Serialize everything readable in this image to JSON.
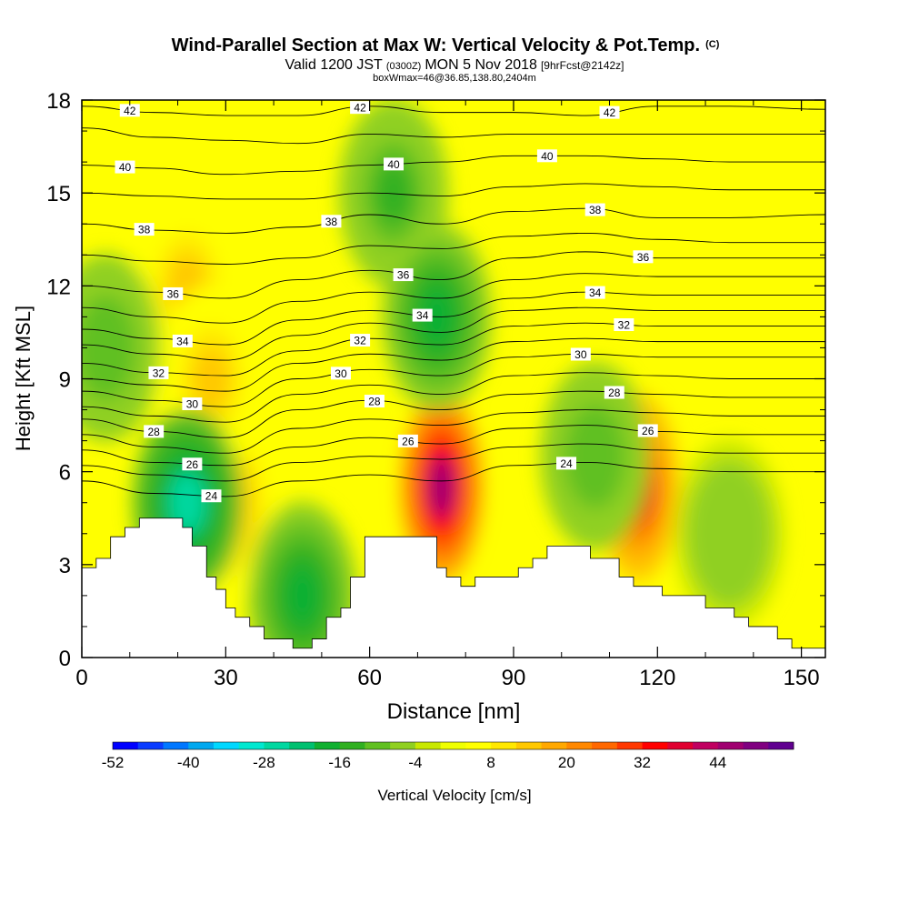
{
  "chart_data": {
    "type": "heatmap",
    "title": "Wind-Parallel Section at Max W: Vertical Velocity & Pot.Temp.",
    "title_mark": "(C)",
    "subtitle_parts": [
      "Valid 1200 JST",
      "(0300Z)",
      "MON 5 Nov 2018",
      "[9hrFcst@2142z]"
    ],
    "subtitle2": "boxWmax=46@36.85,138.80,2404m",
    "xlabel": "Distance [nm]",
    "ylabel": "Height [Kft MSL]",
    "xlim": [
      0,
      155
    ],
    "ylim": [
      0,
      18
    ],
    "x_ticks": [
      "0",
      "30",
      "60",
      "90",
      "120",
      "150"
    ],
    "y_ticks": [
      "0",
      "3",
      "6",
      "9",
      "12",
      "15",
      "18"
    ],
    "terrain": {
      "x": [
        0,
        3,
        6,
        9,
        12,
        15,
        18,
        21,
        23,
        26,
        28,
        30,
        32,
        35,
        38,
        41,
        44,
        46,
        48,
        51,
        54,
        56,
        59,
        62,
        65,
        68,
        71,
        74,
        76,
        79,
        82,
        85,
        88,
        91,
        94,
        97,
        100,
        103,
        106,
        109,
        112,
        115,
        118,
        121,
        124,
        127,
        130,
        133,
        136,
        139,
        142,
        145,
        148,
        150,
        152,
        155
      ],
      "y": [
        2.9,
        3.2,
        3.9,
        4.2,
        4.5,
        4.5,
        4.5,
        4.2,
        3.6,
        2.6,
        2.2,
        1.6,
        1.3,
        1.0,
        0.6,
        0.6,
        0.3,
        0.3,
        0.6,
        1.3,
        1.6,
        2.6,
        3.9,
        3.9,
        3.9,
        3.9,
        3.9,
        2.9,
        2.6,
        2.3,
        2.6,
        2.6,
        2.6,
        2.9,
        3.2,
        3.6,
        3.6,
        3.6,
        3.2,
        3.2,
        2.6,
        2.3,
        2.3,
        2.0,
        2.0,
        2.0,
        1.6,
        1.6,
        1.3,
        1.0,
        1.0,
        0.6,
        0.3,
        0.3,
        0.3,
        0.3
      ]
    },
    "vertical_velocity_cells": {
      "comment_units": "cm/s",
      "cells": [
        {
          "x": 75,
          "y": 5.5,
          "value": 46
        },
        {
          "x": 116,
          "y": 5.5,
          "value": 36
        },
        {
          "x": 29,
          "y": 5.0,
          "value": 18
        },
        {
          "x": 22,
          "y": 12.0,
          "value": 12
        },
        {
          "x": 27,
          "y": 9.0,
          "value": 14
        },
        {
          "x": 65,
          "y": 15.0,
          "value": -14
        },
        {
          "x": 74,
          "y": 11.0,
          "value": -18
        },
        {
          "x": 46,
          "y": 2.0,
          "value": -20
        },
        {
          "x": 22,
          "y": 5.0,
          "value": -26
        },
        {
          "x": 5,
          "y": 10.0,
          "value": -12
        },
        {
          "x": 107,
          "y": 6.5,
          "value": -12
        },
        {
          "x": 135,
          "y": 4.0,
          "value": -8
        }
      ]
    },
    "theta_contours": {
      "label_values": [
        42,
        40,
        38,
        36,
        34,
        32,
        30,
        28,
        26,
        24
      ],
      "levels": [
        {
          "value": 42,
          "ys": [
            17.8,
            17.6,
            17.5,
            17.5,
            17.8,
            17.6,
            17.6,
            17.5,
            17.8,
            17.8,
            17.7
          ]
        },
        {
          "value": 41,
          "ys": [
            17.1,
            16.8,
            16.7,
            16.6,
            16.9,
            16.8,
            16.9,
            16.9,
            16.9,
            16.9,
            16.9
          ]
        },
        {
          "value": 40,
          "ys": [
            15.9,
            15.8,
            15.6,
            15.7,
            15.9,
            16.0,
            16.2,
            16.2,
            16.1,
            16.0,
            16.0
          ]
        },
        {
          "value": 39,
          "ys": [
            15.0,
            14.9,
            14.8,
            14.8,
            15.0,
            14.9,
            15.2,
            15.3,
            15.2,
            15.1,
            15.1
          ]
        },
        {
          "value": 38,
          "ys": [
            14.0,
            13.8,
            13.7,
            13.9,
            14.3,
            14.0,
            14.4,
            14.5,
            14.2,
            14.2,
            14.3
          ]
        },
        {
          "value": 37,
          "ys": [
            13.0,
            12.8,
            12.7,
            12.9,
            13.3,
            13.2,
            13.6,
            13.7,
            13.5,
            13.4,
            13.4
          ]
        },
        {
          "value": 36,
          "ys": [
            12.0,
            11.8,
            11.6,
            12.2,
            12.5,
            12.2,
            12.9,
            13.1,
            12.9,
            12.9,
            12.9
          ]
        },
        {
          "value": 35,
          "ys": [
            11.3,
            11.0,
            10.8,
            11.5,
            11.8,
            11.6,
            12.2,
            12.4,
            12.3,
            12.3,
            12.3
          ]
        },
        {
          "value": 34,
          "ys": [
            10.6,
            10.3,
            10.1,
            10.9,
            11.2,
            11.0,
            11.6,
            11.8,
            11.7,
            11.7,
            11.7
          ]
        },
        {
          "value": 33,
          "ys": [
            10.1,
            9.8,
            9.6,
            10.4,
            10.8,
            10.5,
            11.2,
            11.3,
            11.2,
            11.2,
            11.2
          ]
        },
        {
          "value": 32,
          "ys": [
            9.5,
            9.2,
            9.1,
            9.9,
            10.3,
            10.1,
            10.7,
            10.8,
            10.7,
            10.7,
            10.7
          ]
        },
        {
          "value": 31,
          "ys": [
            9.0,
            8.8,
            8.6,
            9.5,
            9.8,
            9.6,
            10.2,
            10.3,
            10.2,
            10.2,
            10.2
          ]
        },
        {
          "value": 30,
          "ys": [
            8.6,
            8.3,
            8.1,
            9.0,
            9.3,
            9.1,
            9.7,
            9.8,
            9.7,
            9.7,
            9.7
          ]
        },
        {
          "value": 29,
          "ys": [
            8.1,
            7.8,
            7.6,
            8.5,
            8.8,
            8.5,
            9.1,
            9.2,
            9.1,
            9.0,
            9.0
          ]
        },
        {
          "value": 28,
          "ys": [
            7.7,
            7.3,
            7.1,
            8.0,
            8.3,
            8.0,
            8.5,
            8.6,
            8.5,
            8.4,
            8.4
          ]
        },
        {
          "value": 27,
          "ys": [
            7.2,
            6.8,
            6.6,
            7.4,
            7.7,
            7.5,
            7.9,
            8.0,
            7.9,
            7.8,
            7.8
          ]
        },
        {
          "value": 26,
          "ys": [
            6.7,
            6.3,
            6.2,
            6.8,
            7.1,
            6.9,
            7.4,
            7.5,
            7.3,
            7.2,
            7.2
          ]
        },
        {
          "value": 25,
          "ys": [
            6.2,
            5.9,
            5.7,
            6.3,
            6.5,
            6.4,
            6.8,
            6.9,
            6.7,
            6.6,
            6.6
          ]
        },
        {
          "value": 24,
          "ys": [
            5.7,
            5.3,
            5.2,
            5.7,
            5.9,
            5.7,
            6.2,
            6.3,
            6.1,
            6.0,
            6.0
          ]
        }
      ],
      "level_x": [
        0,
        15,
        30,
        45,
        60,
        75,
        90,
        105,
        120,
        135,
        155
      ]
    },
    "colorbar": {
      "label": "Vertical Velocity [cm/s]",
      "tick_labels": [
        "-52",
        "-40",
        "-28",
        "-16",
        "-4",
        "8",
        "20",
        "32",
        "44"
      ],
      "colors": [
        "#0000ff",
        "#0a3cff",
        "#0077ff",
        "#00a8f0",
        "#00d8ff",
        "#00e8d0",
        "#00d8a0",
        "#00c070",
        "#10b030",
        "#30b020",
        "#60c020",
        "#90d020",
        "#c8e800",
        "#f0ff00",
        "#ffff00",
        "#ffe800",
        "#ffc800",
        "#ffa800",
        "#ff8800",
        "#ff6800",
        "#ff3800",
        "#ff0000",
        "#e00030",
        "#c00060",
        "#a00070",
        "#800080",
        "#600090"
      ]
    }
  }
}
